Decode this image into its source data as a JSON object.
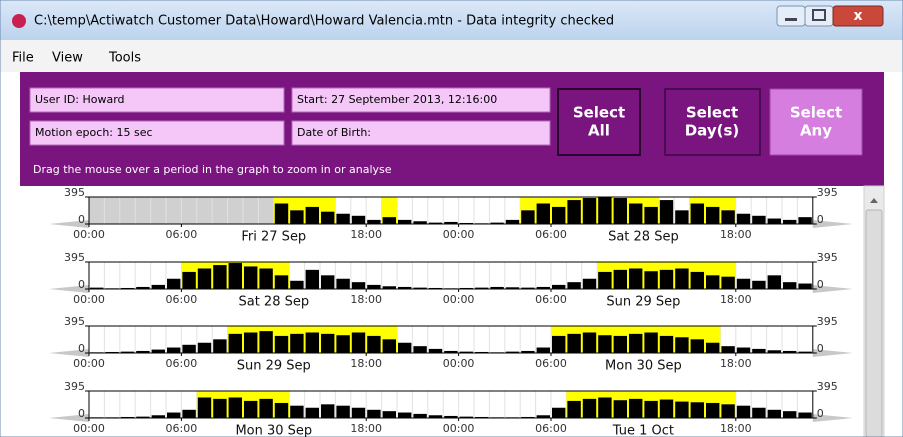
{
  "window": {
    "title": "C:\\temp\\Actiwatch Customer Data\\Howard\\Howard Valencia.mtn - Data integrity checked"
  },
  "menu": [
    "File",
    "View",
    "Tools"
  ],
  "fields": {
    "user_id": "User ID: Howard",
    "start": "Start: 27 September 2013, 12:16:00",
    "epoch": "Motion epoch: 15 sec",
    "dob": "Date of Birth:"
  },
  "buttons": [
    {
      "line1": "Select",
      "line2": "All"
    },
    {
      "line1": "Select",
      "line2": "Day(s)"
    },
    {
      "line1": "Select",
      "line2": "Any"
    }
  ],
  "hint": "Drag the mouse over a period in the graph to zoom in or analyse",
  "graph": {
    "ylim": [
      0,
      395
    ],
    "time_ticks": [
      {
        "hour": 0,
        "label": "00:00"
      },
      {
        "hour": 6,
        "label": "06:00"
      },
      {
        "hour": 18,
        "label": "18:00"
      },
      {
        "hour": 24,
        "label": "00:00"
      },
      {
        "hour": 30,
        "label": "06:00"
      },
      {
        "hour": 42,
        "label": "18:00"
      }
    ],
    "rows": [
      {
        "days": [
          {
            "hour": 12,
            "label": "Fri 27 Sep"
          },
          {
            "hour": 36,
            "label": "Sat 28 Sep"
          }
        ],
        "yellow": [
          [
            12,
            16
          ],
          [
            19,
            20
          ],
          [
            28,
            37
          ],
          [
            39,
            42
          ]
        ],
        "values": [
          null,
          null,
          null,
          null,
          null,
          null,
          null,
          null,
          null,
          null,
          null,
          null,
          300,
          200,
          250,
          180,
          150,
          120,
          60,
          100,
          60,
          40,
          20,
          30,
          15,
          10,
          20,
          60,
          200,
          300,
          250,
          350,
          380,
          395,
          380,
          300,
          250,
          350,
          200,
          300,
          250,
          200,
          150,
          120,
          80,
          60,
          100
        ]
      },
      {
        "days": [
          {
            "hour": 12,
            "label": "Sat 28 Sep"
          },
          {
            "hour": 36,
            "label": "Sun 29 Sep"
          }
        ],
        "yellow": [
          [
            6,
            13
          ],
          [
            33,
            42
          ]
        ],
        "values": [
          20,
          10,
          15,
          30,
          60,
          150,
          250,
          300,
          350,
          380,
          330,
          300,
          200,
          120,
          280,
          200,
          150,
          100,
          60,
          40,
          30,
          20,
          15,
          10,
          15,
          20,
          30,
          25,
          20,
          30,
          60,
          100,
          150,
          250,
          280,
          300,
          260,
          280,
          300,
          250,
          200,
          180,
          150,
          120,
          200,
          100,
          80
        ]
      },
      {
        "days": [
          {
            "hour": 12,
            "label": "Sun 29 Sep"
          },
          {
            "hour": 36,
            "label": "Mon 30 Sep"
          }
        ],
        "yellow": [
          [
            9,
            20
          ],
          [
            30,
            41
          ]
        ],
        "values": [
          10,
          15,
          20,
          30,
          50,
          80,
          120,
          150,
          200,
          280,
          300,
          320,
          250,
          280,
          300,
          280,
          260,
          300,
          250,
          200,
          150,
          100,
          60,
          30,
          20,
          15,
          10,
          20,
          30,
          80,
          250,
          280,
          300,
          260,
          250,
          280,
          300,
          250,
          230,
          200,
          150,
          100,
          80,
          60,
          40,
          30,
          20
        ]
      },
      {
        "days": [
          {
            "hour": 12,
            "label": "Mon 30 Sep"
          },
          {
            "hour": 36,
            "label": "Tue 1 Oct"
          }
        ],
        "yellow": [
          [
            7,
            13
          ],
          [
            31,
            42
          ]
        ],
        "values": [
          10,
          10,
          15,
          20,
          40,
          80,
          120,
          300,
          280,
          300,
          250,
          280,
          220,
          180,
          150,
          200,
          180,
          150,
          120,
          100,
          80,
          60,
          40,
          30,
          20,
          15,
          10,
          10,
          15,
          40,
          150,
          250,
          280,
          300,
          260,
          280,
          250,
          270,
          240,
          230,
          220,
          200,
          180,
          150,
          120,
          100,
          80
        ]
      }
    ]
  }
}
